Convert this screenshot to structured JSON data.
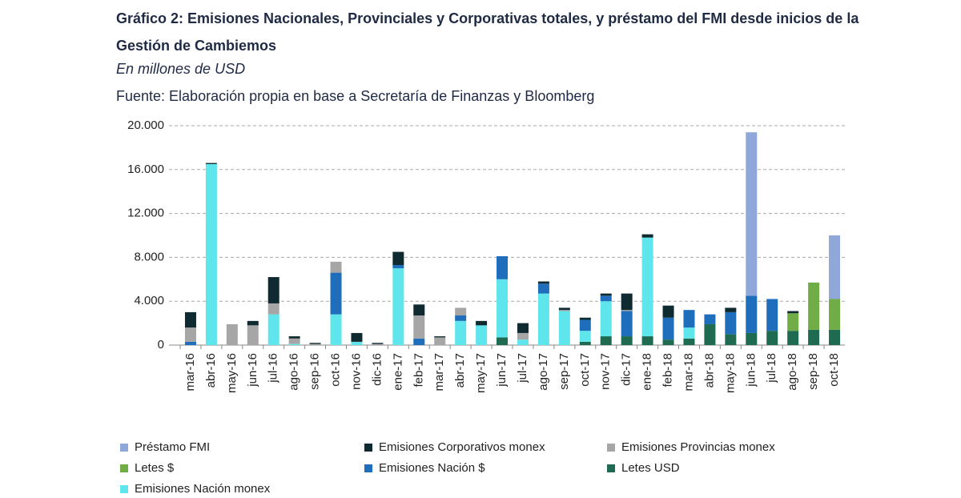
{
  "chart_data": {
    "type": "stacked_bar",
    "title": "Gráfico 2: Emisiones Nacionales, Provinciales y Corporativas totales, y préstamo del FMI desde inicios de la Gestión de Cambiemos",
    "subtitle": "En millones de USD",
    "source": "Fuente: Elaboración propia en base a Secretaría de Finanzas y Bloomberg",
    "categories": [
      "mar-16",
      "abr-16",
      "may-16",
      "jun-16",
      "jul-16",
      "ago-16",
      "sep-16",
      "oct-16",
      "nov-16",
      "dic-16",
      "ene-17",
      "feb-17",
      "mar-17",
      "abr-17",
      "may-17",
      "jun-17",
      "jul-17",
      "ago-17",
      "sep-17",
      "oct-17",
      "nov-17",
      "dic-17",
      "ene-18",
      "feb-18",
      "mar-18",
      "abr-18",
      "may-18",
      "jun-18",
      "jul-18",
      "ago-18",
      "sep-18",
      "oct-18"
    ],
    "series": [
      {
        "name": "Préstamo FMI",
        "color": "#8fa7d9",
        "values": [
          0,
          0,
          0,
          0,
          0,
          0,
          0,
          0,
          0,
          0,
          0,
          0,
          0,
          0,
          0,
          0,
          0,
          0,
          0,
          0,
          0,
          0,
          0,
          0,
          0,
          0,
          0,
          14900,
          0,
          0,
          0,
          5800
        ]
      },
      {
        "name": "Emisiones Corporativos monex",
        "color": "#0f2a30",
        "values": [
          1400,
          100,
          0,
          400,
          2400,
          200,
          100,
          0,
          800,
          100,
          1200,
          1000,
          100,
          0,
          400,
          0,
          900,
          200,
          200,
          200,
          200,
          1500,
          300,
          1100,
          0,
          0,
          400,
          0,
          0,
          200,
          0,
          0
        ]
      },
      {
        "name": "Emisiones Provincias monex",
        "color": "#a6a6a6",
        "values": [
          1300,
          0,
          1900,
          1800,
          1000,
          500,
          100,
          1000,
          0,
          100,
          0,
          2100,
          700,
          700,
          0,
          0,
          600,
          0,
          100,
          0,
          0,
          100,
          0,
          0,
          0,
          0,
          0,
          0,
          0,
          0,
          0,
          0
        ]
      },
      {
        "name": "Letes $",
        "color": "#70ad47",
        "values": [
          0,
          0,
          0,
          0,
          0,
          0,
          0,
          0,
          0,
          0,
          0,
          0,
          0,
          0,
          0,
          0,
          0,
          0,
          0,
          0,
          0,
          0,
          0,
          0,
          0,
          0,
          0,
          0,
          0,
          1600,
          4300,
          2800
        ]
      },
      {
        "name": "Emisiones Nación $",
        "color": "#1f6ebc",
        "values": [
          300,
          0,
          0,
          0,
          0,
          0,
          0,
          3800,
          0,
          0,
          300,
          600,
          0,
          500,
          0,
          2100,
          0,
          900,
          0,
          1000,
          500,
          2300,
          0,
          2000,
          1600,
          900,
          2000,
          3400,
          2900,
          0,
          0,
          0
        ]
      },
      {
        "name": "Letes USD",
        "color": "#1e6b52",
        "values": [
          0,
          0,
          0,
          0,
          0,
          0,
          0,
          0,
          0,
          0,
          0,
          0,
          0,
          0,
          0,
          700,
          0,
          0,
          0,
          300,
          800,
          800,
          800,
          500,
          600,
          1900,
          1000,
          1100,
          1300,
          1300,
          1400,
          1400
        ]
      },
      {
        "name": "Emisiones Nación monex",
        "color": "#5fe6ec",
        "values": [
          0,
          16500,
          0,
          0,
          2800,
          100,
          0,
          2800,
          300,
          0,
          7000,
          0,
          0,
          2200,
          1800,
          5300,
          500,
          4700,
          3100,
          1000,
          3200,
          0,
          9000,
          0,
          1000,
          0,
          0,
          0,
          0,
          0,
          0,
          0
        ]
      }
    ],
    "ylim": [
      0,
      20000
    ],
    "yticks": [
      0,
      {
        "value": 4000,
        "label": "4.000"
      },
      {
        "value": 8000,
        "label": "8.000"
      },
      {
        "value": 12000,
        "label": "12.000"
      },
      {
        "value": 16000,
        "label": "16.000"
      },
      {
        "value": 20000,
        "label": "20.000"
      }
    ],
    "grid": true
  }
}
